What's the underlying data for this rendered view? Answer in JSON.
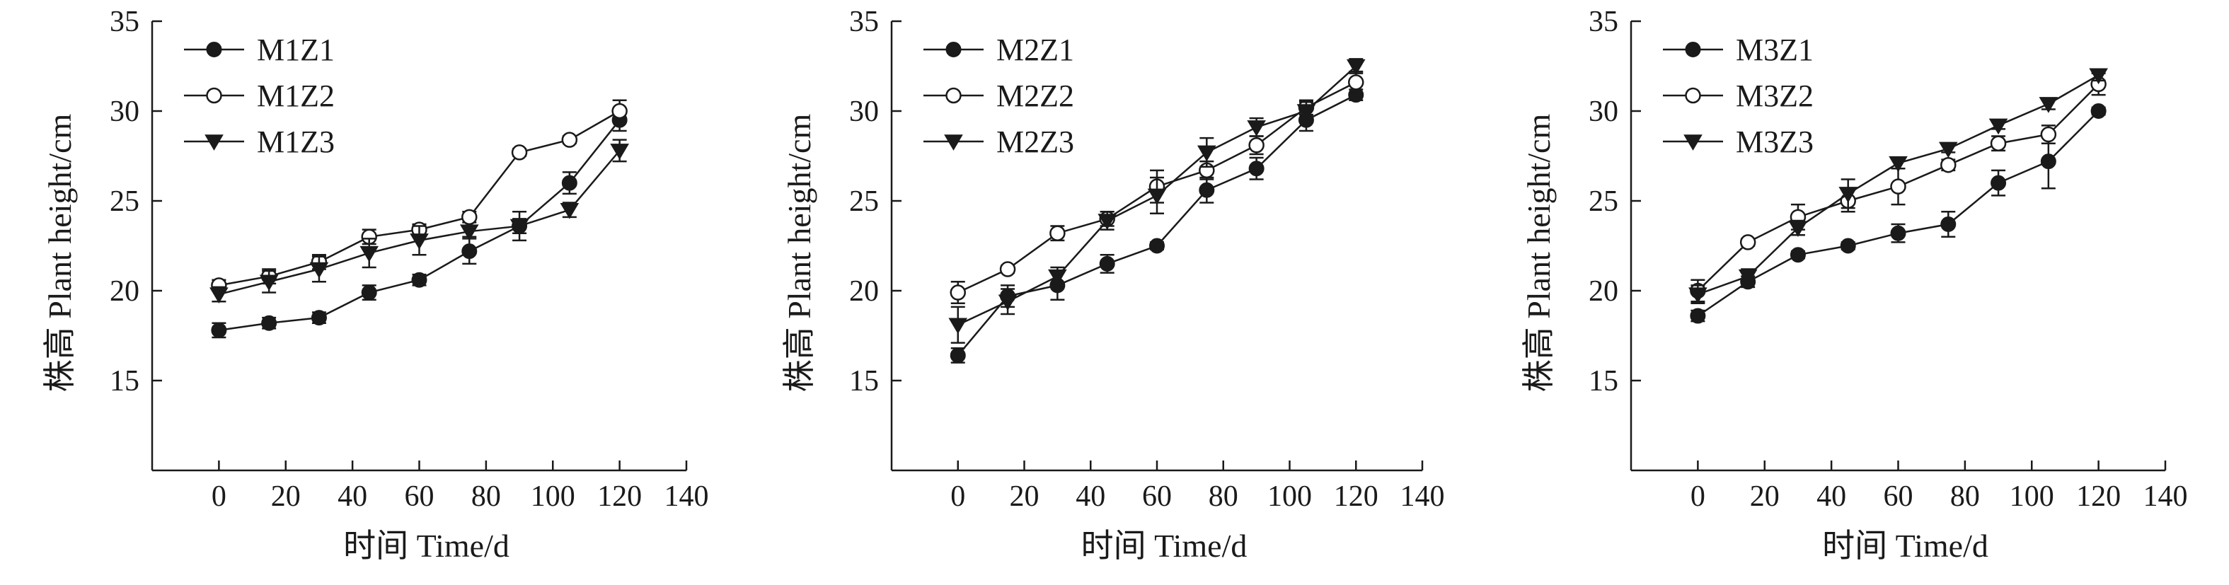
{
  "colors": {
    "ink": "#1a1a1a",
    "open_fill": "#ffffff",
    "background": "#ffffff"
  },
  "chart_data": [
    {
      "type": "line",
      "xlabel": "时间 Time/d",
      "ylabel": "株高 Plant height/cm",
      "xlim": [
        -20,
        140
      ],
      "ylim": [
        10,
        35
      ],
      "xticks": [
        0,
        20,
        40,
        60,
        80,
        100,
        120,
        140
      ],
      "yticks": [
        15,
        20,
        25,
        30,
        35
      ],
      "legend_position": "top-left",
      "x": [
        0,
        15,
        30,
        45,
        60,
        75,
        90,
        105,
        120
      ],
      "series": [
        {
          "name": "M1Z1",
          "marker": "filled-circle",
          "values": [
            17.8,
            18.2,
            18.5,
            19.9,
            20.6,
            22.2,
            23.6,
            26.0,
            29.5
          ],
          "errors": [
            0.4,
            0.3,
            0.3,
            0.4,
            0.3,
            0.7,
            0.4,
            0.6,
            0.6
          ]
        },
        {
          "name": "M1Z2",
          "marker": "open-circle",
          "values": [
            20.3,
            20.8,
            21.6,
            23.0,
            23.4,
            24.1,
            27.7,
            28.4,
            30.0
          ],
          "errors": [
            0.3,
            0.4,
            0.4,
            0.4,
            0.3,
            0.3,
            0.2,
            0.2,
            0.6
          ]
        },
        {
          "name": "M1Z3",
          "marker": "filled-triangle",
          "values": [
            19.8,
            20.5,
            21.2,
            22.1,
            22.8,
            23.3,
            23.6,
            24.5,
            27.8
          ],
          "errors": [
            0.4,
            0.6,
            0.7,
            0.8,
            0.8,
            0.3,
            0.8,
            0.4,
            0.6
          ]
        }
      ]
    },
    {
      "type": "line",
      "xlabel": "时间 Time/d",
      "ylabel": "株高 Plant height/cm",
      "xlim": [
        -20,
        140
      ],
      "ylim": [
        10,
        35
      ],
      "xticks": [
        0,
        20,
        40,
        60,
        80,
        100,
        120,
        140
      ],
      "yticks": [
        15,
        20,
        25,
        30,
        35
      ],
      "legend_position": "top-left",
      "x": [
        0,
        15,
        30,
        45,
        60,
        75,
        90,
        105,
        120
      ],
      "series": [
        {
          "name": "M2Z1",
          "marker": "filled-circle",
          "values": [
            16.4,
            19.7,
            20.3,
            21.5,
            22.5,
            25.6,
            26.8,
            29.5,
            30.9
          ],
          "errors": [
            0.4,
            0.6,
            0.8,
            0.5,
            0.2,
            0.7,
            0.6,
            0.6,
            0.3
          ]
        },
        {
          "name": "M2Z2",
          "marker": "open-circle",
          "values": [
            19.9,
            21.2,
            23.2,
            24.0,
            25.8,
            26.7,
            28.1,
            30.2,
            31.6
          ],
          "errors": [
            0.6,
            0.2,
            0.4,
            0.4,
            0.9,
            0.5,
            0.5,
            0.4,
            0.6
          ]
        },
        {
          "name": "M2Z3",
          "marker": "filled-triangle",
          "values": [
            18.1,
            19.4,
            20.8,
            23.9,
            25.3,
            27.7,
            29.1,
            30.0,
            32.5
          ],
          "errors": [
            1.0,
            0.7,
            0.5,
            0.5,
            1.0,
            0.8,
            0.5,
            0.5,
            0.4
          ]
        }
      ]
    },
    {
      "type": "line",
      "xlabel": "时间 Time/d",
      "ylabel": "株高 Plant height/cm",
      "xlim": [
        -20,
        140
      ],
      "ylim": [
        10,
        35
      ],
      "xticks": [
        0,
        20,
        40,
        60,
        80,
        100,
        120,
        140
      ],
      "yticks": [
        15,
        20,
        25,
        30,
        35
      ],
      "legend_position": "top-left",
      "x": [
        0,
        15,
        30,
        45,
        60,
        75,
        90,
        105,
        120
      ],
      "series": [
        {
          "name": "M3Z1",
          "marker": "filled-circle",
          "values": [
            18.6,
            20.5,
            22.0,
            22.5,
            23.2,
            23.7,
            26.0,
            27.2,
            30.0
          ],
          "errors": [
            0.3,
            0.3,
            0.2,
            0.2,
            0.5,
            0.7,
            0.7,
            1.5,
            0.2
          ]
        },
        {
          "name": "M3Z2",
          "marker": "open-circle",
          "values": [
            20.0,
            22.7,
            24.1,
            25.0,
            25.8,
            27.0,
            28.2,
            28.7,
            31.5
          ],
          "errors": [
            0.6,
            0.2,
            0.7,
            0.6,
            1.0,
            0.3,
            0.4,
            0.5,
            0.6
          ]
        },
        {
          "name": "M3Z3",
          "marker": "filled-triangle",
          "values": [
            19.8,
            20.8,
            23.5,
            25.4,
            27.1,
            27.9,
            29.2,
            30.4,
            32.0
          ],
          "errors": [
            0.5,
            0.4,
            0.4,
            0.8,
            0.3,
            0.2,
            0.2,
            0.3,
            0.3
          ]
        }
      ]
    }
  ]
}
